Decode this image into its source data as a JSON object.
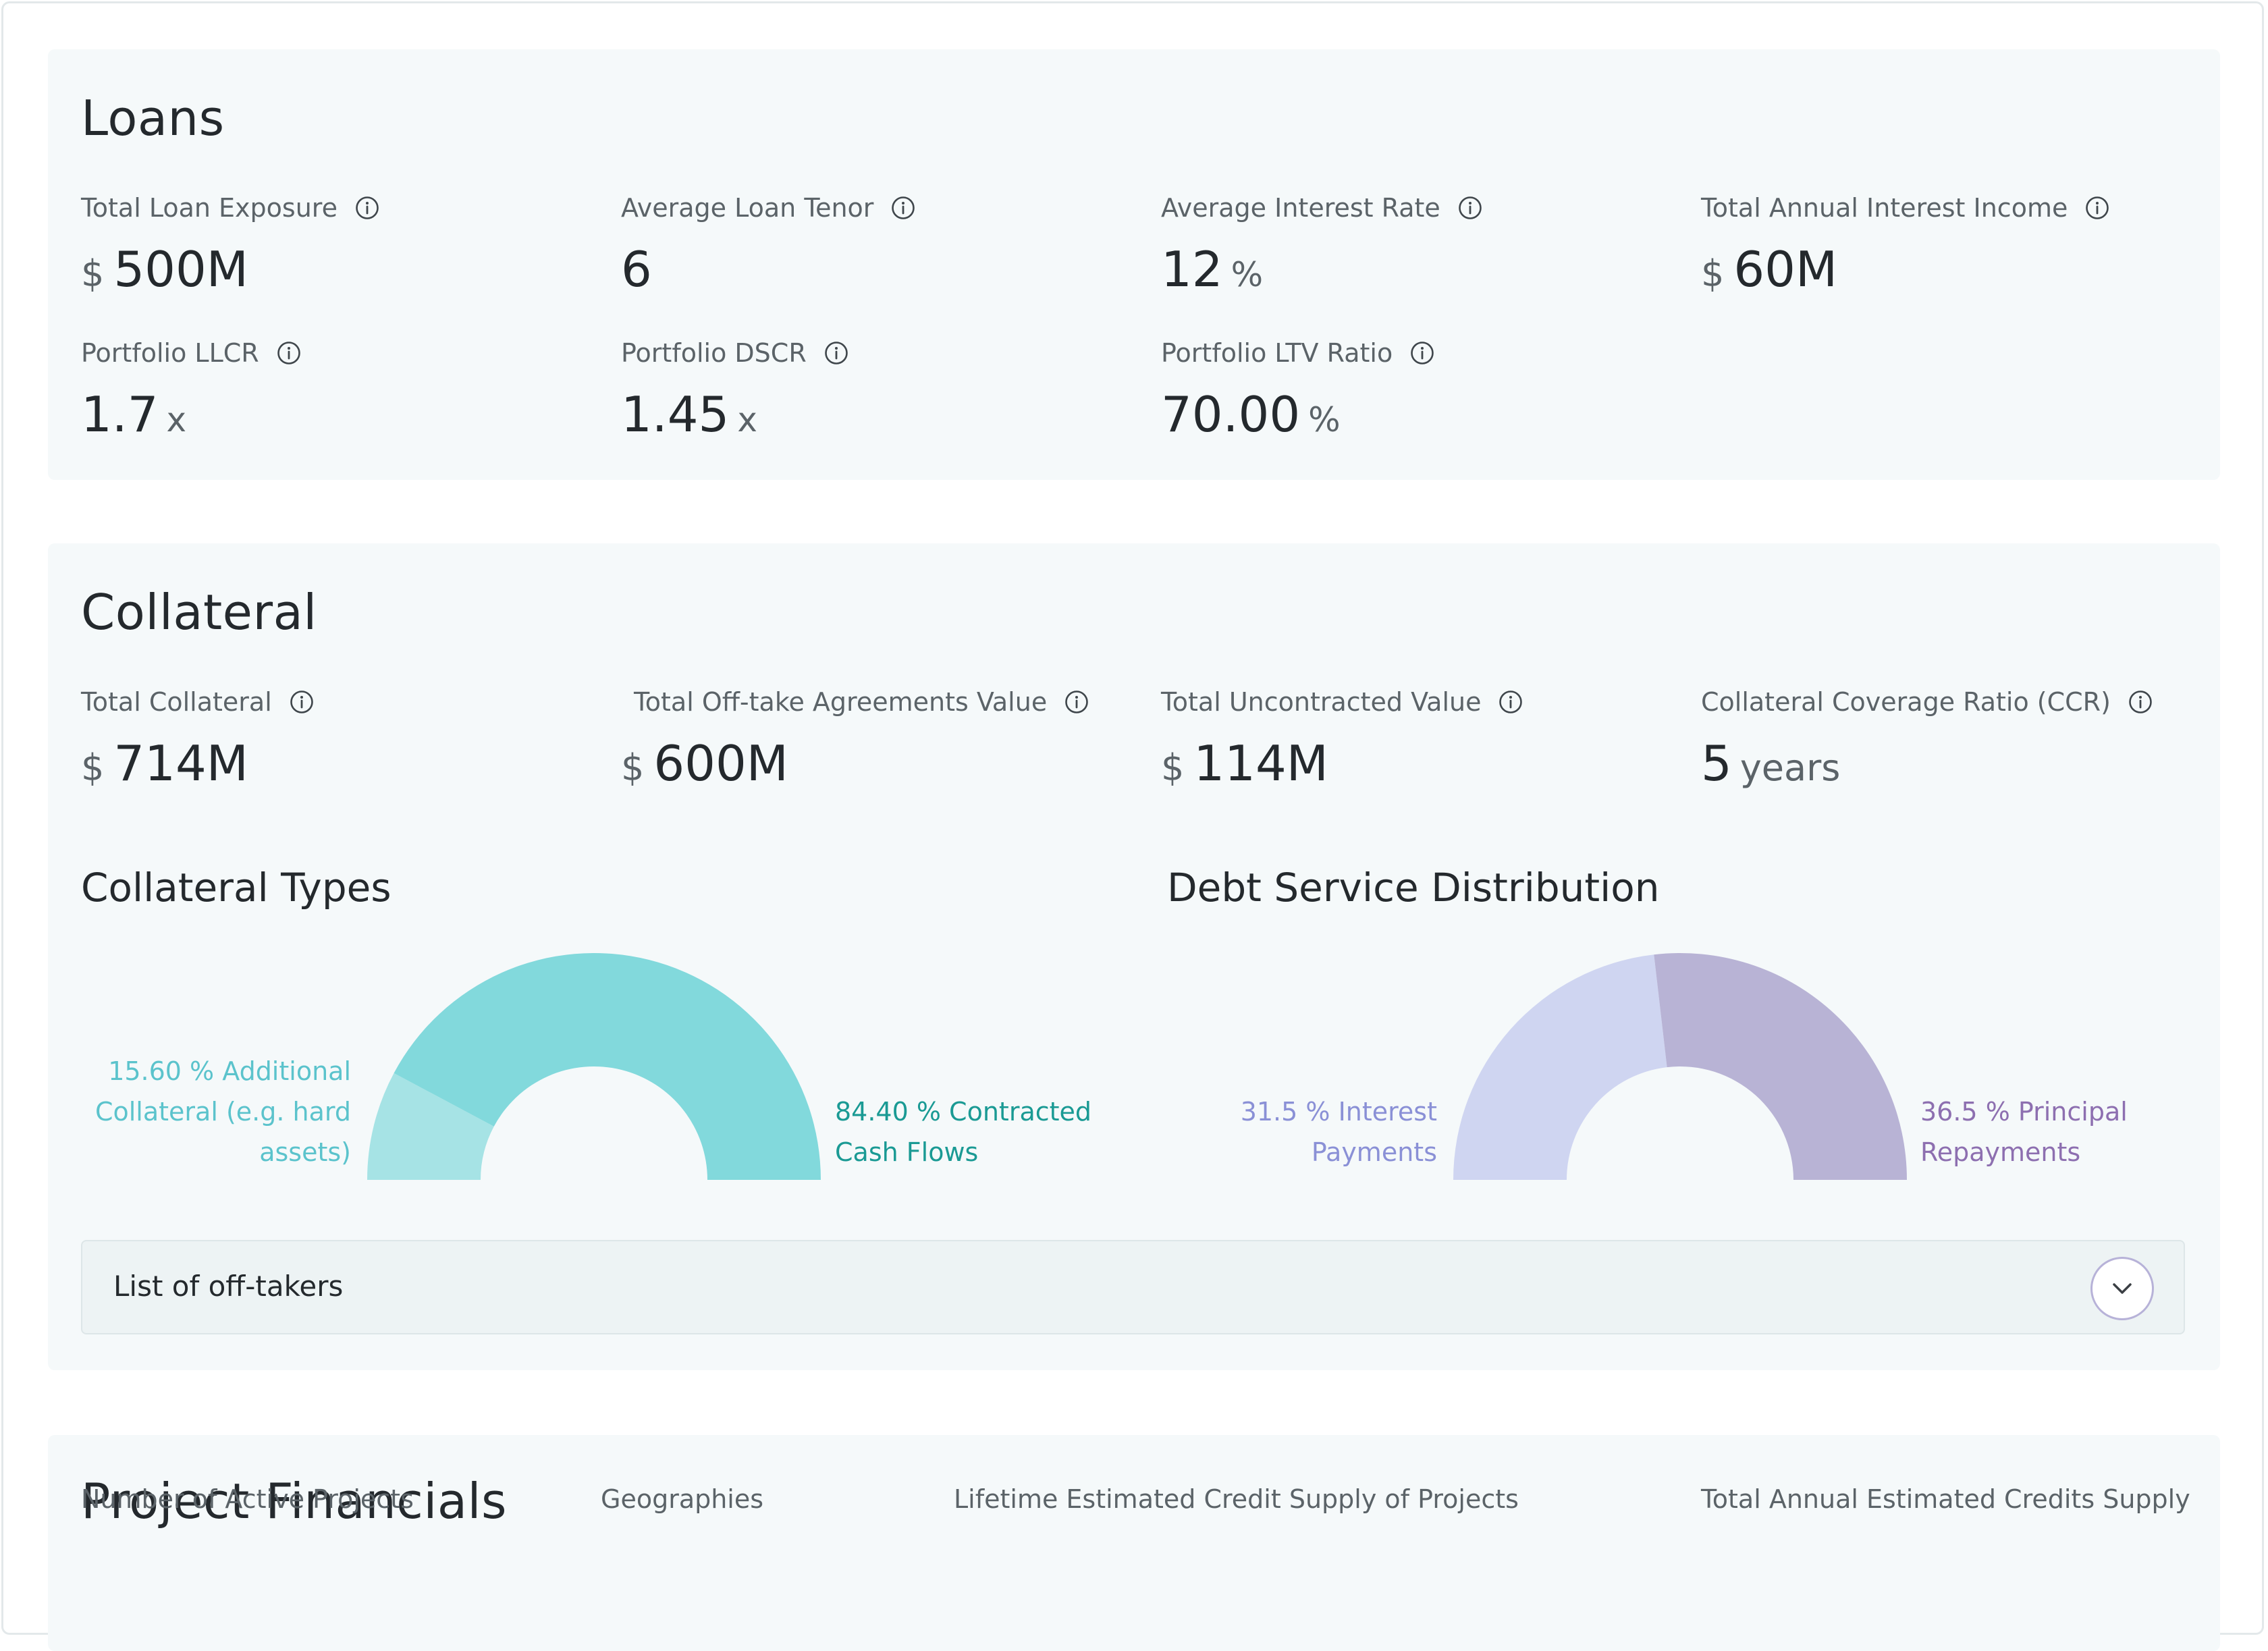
{
  "loans": {
    "title": "Loans",
    "metrics": [
      {
        "label": "Total Loan Exposure",
        "prefix": "$",
        "value": "500M",
        "suffix": ""
      },
      {
        "label": "Average Loan Tenor",
        "prefix": "",
        "value": "6",
        "suffix": ""
      },
      {
        "label": "Average Interest Rate",
        "prefix": "",
        "value": "12",
        "suffix": "%"
      },
      {
        "label": "Total Annual Interest Income",
        "prefix": "$",
        "value": "60M",
        "suffix": ""
      },
      {
        "label": "Portfolio LLCR",
        "prefix": "",
        "value": "1.7",
        "suffix": "x"
      },
      {
        "label": "Portfolio DSCR",
        "prefix": "",
        "value": "1.45",
        "suffix": "x"
      },
      {
        "label": "Portfolio LTV Ratio",
        "prefix": "",
        "value": "70.00",
        "suffix": "%"
      }
    ]
  },
  "collateral": {
    "title": "Collateral",
    "metrics": [
      {
        "label": "Total Collateral",
        "prefix": "$",
        "value": "714M",
        "suffix": ""
      },
      {
        "label": "Total Off-take Agreements Value",
        "prefix": "$",
        "value": "600M",
        "suffix": ""
      },
      {
        "label": "Total Uncontracted Value",
        "prefix": "$",
        "value": "114M",
        "suffix": ""
      },
      {
        "label": "Collateral Coverage Ratio (CCR)",
        "prefix": "",
        "value": "5",
        "suffix": "years"
      }
    ],
    "collateral_types": {
      "title": "Collateral Types",
      "left_legend": "15.60 % Additional Collateral (e.g. hard assets)",
      "right_legend": "84.40 % Contracted Cash Flows",
      "left_color": "#5bc3cc",
      "right_color": "#1a9a94"
    },
    "debt_service": {
      "title": "Debt Service Distribution",
      "left_legend": "31.5 % Interest Payments",
      "right_legend": "36.5 % Principal Repayments",
      "left_color": "#8a90d6",
      "right_color": "#8d6fb0"
    },
    "offtakers_label": "List of off-takers"
  },
  "project_financials": {
    "title": "Project Financials",
    "labels": [
      "Number of Active Projects",
      "Geographies",
      "Lifetime Estimated Credit Supply of Projects",
      "Total Annual Estimated Credits Supply"
    ]
  },
  "chart_data": [
    {
      "type": "pie",
      "title": "Collateral Types",
      "categories": [
        "Additional Collateral (e.g. hard assets)",
        "Contracted Cash Flows"
      ],
      "values": [
        15.6,
        84.4
      ],
      "colors": [
        "#a6e3e5",
        "#82d9dc"
      ]
    },
    {
      "type": "pie",
      "title": "Debt Service Distribution",
      "categories": [
        "Interest Payments",
        "Principal Repayments"
      ],
      "values": [
        31.5,
        36.5
      ],
      "colors": [
        "#cfd5f1",
        "#b8b3d5"
      ]
    }
  ]
}
